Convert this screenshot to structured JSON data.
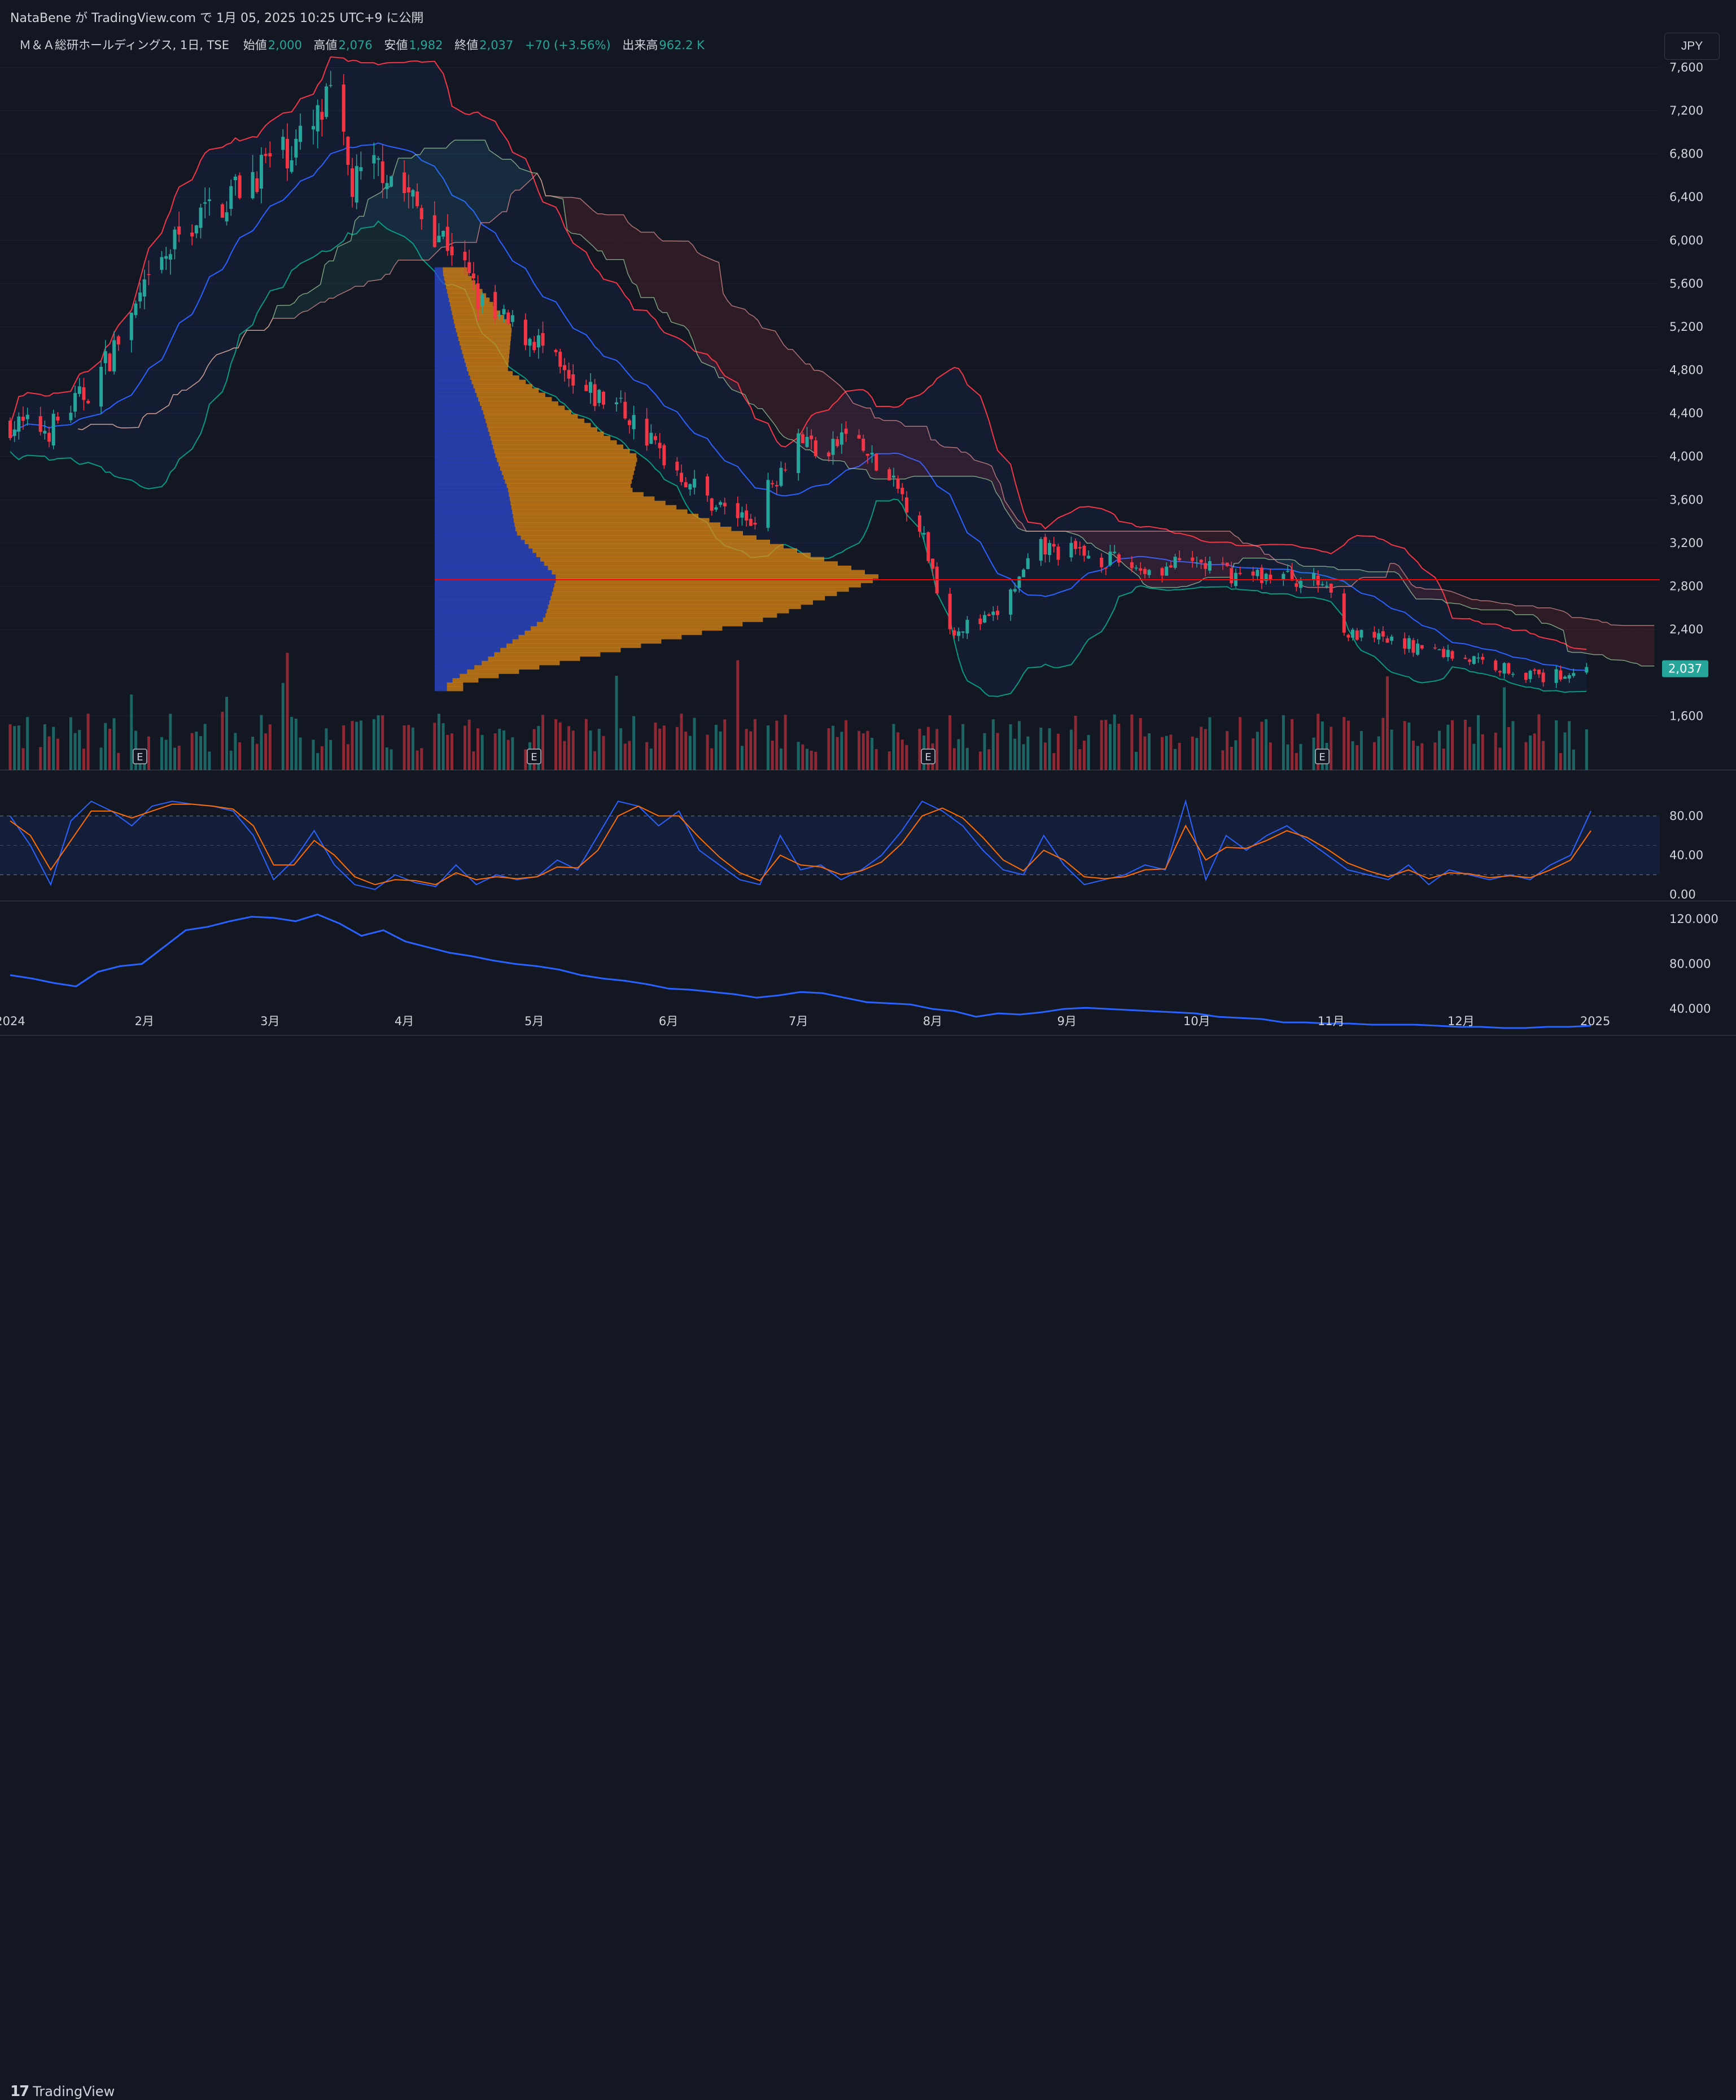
{
  "header": {
    "attribution": "NataBene が TradingView.com で 1月 05, 2025 10:25 UTC+9 に公開"
  },
  "legend": {
    "symbol": "Ｍ＆Ａ総研ホールディングス, 1日, TSE",
    "open_label": "始値",
    "open": "2,000",
    "high_label": "高値",
    "high": "2,076",
    "low_label": "安値",
    "low": "1,982",
    "close_label": "終値",
    "close": "2,037",
    "change": "+70 (+3.56%)",
    "volume_label": "出来高",
    "volume": "962.2 K"
  },
  "currency_button": "JPY",
  "footer": {
    "logo_mark": "17",
    "logo_text": "TradingView"
  },
  "colors": {
    "up": "#26a69a",
    "down": "#f23645",
    "basis": "#2962ff",
    "bb_upper": "#f23645",
    "bb_lower": "#089981",
    "vp_up": "#2e4bd1",
    "vp_down": "#e08a14",
    "hline": "#ff0000",
    "rsi_k": "#2962ff",
    "rsi_d": "#ff6d00",
    "cloud_bull": "#26a69a",
    "cloud_bear": "#f23645"
  },
  "chart_data": [
    {
      "type": "candlestick",
      "pane": "price",
      "y_ticks": [
        "7,600",
        "7,200",
        "6,800",
        "6,400",
        "6,000",
        "5,600",
        "5,200",
        "4,800",
        "4,400",
        "4,000",
        "3,600",
        "3,200",
        "2,800",
        "2,400",
        "1,600"
      ],
      "ylim": [
        1100,
        7900
      ],
      "last_price_label": "2,037",
      "last_price": 2037,
      "horizontal_line": 2860,
      "x_labels": [
        "2024",
        "2月",
        "3月",
        "4月",
        "5月",
        "6月",
        "7月",
        "8月",
        "9月",
        "10月",
        "11月",
        "12月",
        "2025"
      ],
      "earnings_markers": [
        "E",
        "E",
        "E",
        "E"
      ],
      "anchors": [
        {
          "d": "2024-01-01",
          "p": 4300
        },
        {
          "d": "2024-01-10",
          "p": 4250
        },
        {
          "d": "2024-01-20",
          "p": 4650
        },
        {
          "d": "2024-02-01",
          "p": 5500
        },
        {
          "d": "2024-02-10",
          "p": 6100
        },
        {
          "d": "2024-02-20",
          "p": 6400
        },
        {
          "d": "2024-03-01",
          "p": 6750
        },
        {
          "d": "2024-03-10",
          "p": 6950
        },
        {
          "d": "2024-03-15",
          "p": 7300
        },
        {
          "d": "2024-03-20",
          "p": 6500
        },
        {
          "d": "2024-03-27",
          "p": 6700
        },
        {
          "d": "2024-04-05",
          "p": 6250
        },
        {
          "d": "2024-04-12",
          "p": 5950
        },
        {
          "d": "2024-04-20",
          "p": 5300
        },
        {
          "d": "2024-05-01",
          "p": 5100
        },
        {
          "d": "2024-05-10",
          "p": 4600
        },
        {
          "d": "2024-05-20",
          "p": 4500
        },
        {
          "d": "2024-05-31",
          "p": 4000
        },
        {
          "d": "2024-06-10",
          "p": 3600
        },
        {
          "d": "2024-06-20",
          "p": 3400
        },
        {
          "d": "2024-07-01",
          "p": 4200
        },
        {
          "d": "2024-07-08",
          "p": 4000
        },
        {
          "d": "2024-07-12",
          "p": 4250
        },
        {
          "d": "2024-07-20",
          "p": 3850
        },
        {
          "d": "2024-07-28",
          "p": 3500
        },
        {
          "d": "2024-08-05",
          "p": 2400
        },
        {
          "d": "2024-08-15",
          "p": 2500
        },
        {
          "d": "2024-08-26",
          "p": 3150
        },
        {
          "d": "2024-09-05",
          "p": 3100
        },
        {
          "d": "2024-09-20",
          "p": 2950
        },
        {
          "d": "2024-10-01",
          "p": 3020
        },
        {
          "d": "2024-10-10",
          "p": 2900
        },
        {
          "d": "2024-10-20",
          "p": 2900
        },
        {
          "d": "2024-10-31",
          "p": 2820
        },
        {
          "d": "2024-11-05",
          "p": 2350
        },
        {
          "d": "2024-11-20",
          "p": 2250
        },
        {
          "d": "2024-12-01",
          "p": 2150
        },
        {
          "d": "2024-12-20",
          "p": 1950
        },
        {
          "d": "2024-12-30",
          "p": 2037
        }
      ],
      "volume_profile_anchors": [
        {
          "p": 5700,
          "up": 0.02,
          "dn": 0.06
        },
        {
          "p": 5200,
          "up": 0.05,
          "dn": 0.14
        },
        {
          "p": 4800,
          "up": 0.08,
          "dn": 0.1
        },
        {
          "p": 4400,
          "up": 0.12,
          "dn": 0.22
        },
        {
          "p": 4000,
          "up": 0.15,
          "dn": 0.35
        },
        {
          "p": 3700,
          "up": 0.18,
          "dn": 0.3
        },
        {
          "p": 3300,
          "up": 0.2,
          "dn": 0.55
        },
        {
          "p": 2880,
          "up": 0.3,
          "dn": 0.8
        },
        {
          "p": 2500,
          "up": 0.27,
          "dn": 0.55
        },
        {
          "p": 2100,
          "up": 0.12,
          "dn": 0.2
        },
        {
          "p": 1900,
          "up": 0.03,
          "dn": 0.04
        }
      ]
    },
    {
      "type": "line",
      "pane": "rsi",
      "y_ticks": [
        "80.00",
        "40.00",
        "0.00"
      ],
      "ylim": [
        -5,
        105
      ],
      "band": [
        20,
        80
      ],
      "series": [
        {
          "key": "k",
          "values": [
            80,
            50,
            10,
            75,
            95,
            85,
            70,
            90,
            95,
            92,
            90,
            85,
            60,
            15,
            35,
            65,
            30,
            10,
            5,
            20,
            12,
            8,
            30,
            10,
            20,
            15,
            18,
            35,
            25,
            60,
            95,
            90,
            70,
            85,
            45,
            30,
            15,
            10,
            60,
            25,
            30,
            15,
            25,
            40,
            65,
            95,
            85,
            70,
            45,
            25,
            20,
            60,
            30,
            10,
            15,
            20,
            30,
            25,
            95,
            15,
            60,
            45,
            60,
            70,
            55,
            40,
            25,
            20,
            15,
            30,
            10,
            25,
            20,
            15,
            20,
            15,
            30,
            40,
            85
          ]
        },
        {
          "key": "d",
          "values": [
            75,
            60,
            25,
            55,
            85,
            85,
            78,
            85,
            92,
            92,
            90,
            87,
            70,
            30,
            30,
            55,
            40,
            18,
            10,
            15,
            14,
            10,
            22,
            15,
            18,
            16,
            18,
            28,
            27,
            45,
            80,
            90,
            80,
            80,
            58,
            38,
            22,
            14,
            40,
            30,
            28,
            20,
            24,
            33,
            52,
            80,
            88,
            78,
            58,
            35,
            24,
            45,
            35,
            18,
            16,
            18,
            25,
            26,
            70,
            35,
            48,
            47,
            55,
            65,
            58,
            46,
            32,
            24,
            18,
            25,
            16,
            22,
            21,
            17,
            19,
            17,
            25,
            35,
            65
          ]
        }
      ]
    },
    {
      "type": "line",
      "pane": "indicator",
      "y_ticks": [
        "120.000",
        "80.000",
        "40.000"
      ],
      "ylim": [
        20,
        135
      ],
      "series": [
        {
          "key": "value",
          "values": [
            70,
            67,
            63,
            60,
            73,
            78,
            80,
            95,
            110,
            113,
            118,
            122,
            121,
            118,
            124,
            116,
            105,
            110,
            100,
            95,
            90,
            87,
            83,
            80,
            78,
            75,
            70,
            67,
            65,
            62,
            58,
            57,
            55,
            53,
            50,
            52,
            55,
            54,
            50,
            46,
            45,
            44,
            40,
            38,
            33,
            36,
            35,
            37,
            40,
            41,
            40,
            39,
            38,
            37,
            36,
            33,
            32,
            31,
            28,
            28,
            27,
            27,
            26,
            26,
            26,
            25,
            24,
            24,
            23,
            23,
            24,
            24,
            25
          ]
        }
      ]
    }
  ]
}
